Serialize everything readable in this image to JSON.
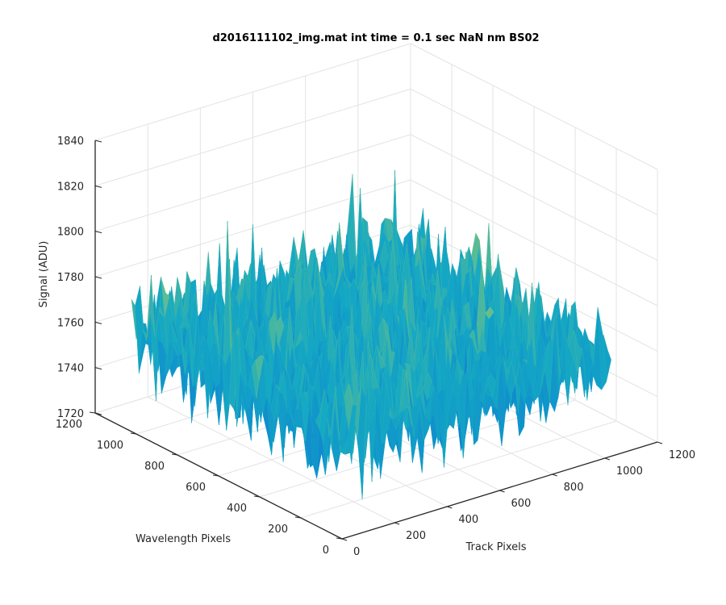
{
  "chart_data": {
    "type": "surface",
    "title": "d2016111102_img.mat int time = 0.1 sec  NaN nm BS02",
    "xlabel": "Track Pixels",
    "ylabel": "Wavelength Pixels",
    "zlabel": "Signal (ADU)",
    "xlim": [
      0,
      1200
    ],
    "ylim": [
      0,
      1200
    ],
    "zlim": [
      1720,
      1840
    ],
    "xticks": [
      0,
      200,
      400,
      600,
      800,
      1000,
      1200
    ],
    "yticks": [
      0,
      200,
      400,
      600,
      800,
      1000,
      1200
    ],
    "zticks": [
      1720,
      1740,
      1760,
      1780,
      1800,
      1820,
      1840
    ],
    "xtick_labels": [
      "0",
      "200",
      "400",
      "600",
      "800",
      "1000",
      "1200"
    ],
    "ytick_labels": [
      "0",
      "200",
      "400",
      "600",
      "800",
      "1000",
      "1200"
    ],
    "ztick_labels": [
      "1720",
      "1740",
      "1760",
      "1780",
      "1800",
      "1820",
      "1840"
    ],
    "data_extent": {
      "x": [
        0,
        1024
      ],
      "y": [
        0,
        1024
      ]
    },
    "surface": {
      "baseline": 1762,
      "noise_range": [
        1735,
        1800
      ],
      "max_peak": 1828,
      "min_dip": 1718,
      "description_note": "noisy near-flat surface around ~1760 ADU"
    },
    "grid": true,
    "colormap": "parula",
    "colors": {
      "low": "#0a6bd8",
      "mid": "#14a9c4",
      "high": "#c8d84a"
    }
  }
}
